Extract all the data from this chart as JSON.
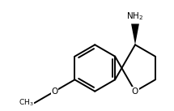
{
  "background": "#ffffff",
  "bond_color": "#000000",
  "bond_lw": 1.4,
  "text_color": "#000000",
  "font_size": 7.5,
  "b": 0.28
}
